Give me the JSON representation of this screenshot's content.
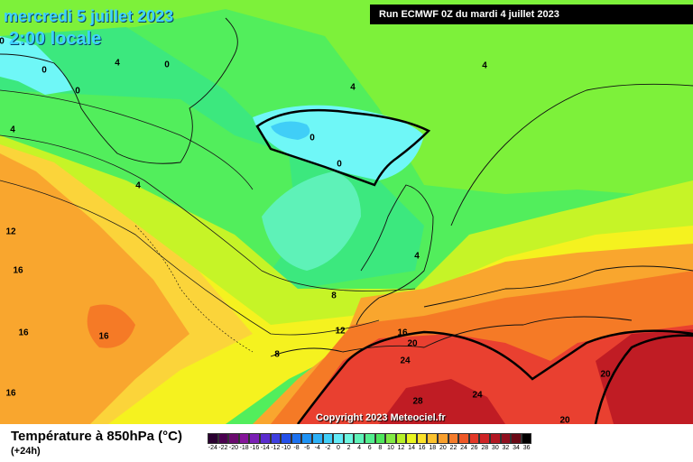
{
  "header": {
    "date": "mercredi 5 juillet 2023",
    "local_time": "2:00 locale",
    "run": "Run ECMWF 0Z du mardi 4 juillet 2023"
  },
  "copyright": "Copyright 2023 Meteociel.fr",
  "legend": {
    "title": "Température à 850hPa (°C)",
    "subtitle": "(+24h)",
    "ticks": [
      "-24",
      "-22",
      "-20",
      "-18",
      "-16",
      "-14",
      "-12",
      "-10",
      "-8",
      "-6",
      "-4",
      "-2",
      "0",
      "2",
      "4",
      "6",
      "8",
      "10",
      "12",
      "14",
      "16",
      "18",
      "20",
      "22",
      "24",
      "26",
      "28",
      "30",
      "32",
      "34",
      "36"
    ],
    "colors": [
      "#2a0030",
      "#4a004f",
      "#6a0a6e",
      "#85159a",
      "#7a1fb5",
      "#5a2ccf",
      "#3e3fe0",
      "#2450ea",
      "#1d72f0",
      "#1f93f5",
      "#2cb1f7",
      "#40cef7",
      "#62eaf7",
      "#6cf6e0",
      "#5ef2b8",
      "#53ee8e",
      "#4ee65c",
      "#82ea44",
      "#b6f028",
      "#e9f520",
      "#fbe22a",
      "#fbc22e",
      "#f9a02e",
      "#f47c2c",
      "#ee5828",
      "#e33828",
      "#cf2426",
      "#b31722",
      "#901020",
      "#6a0a16",
      "#000000"
    ]
  },
  "map": {
    "colors": {
      "cyan": "#6ff7f7",
      "green_dark": "#3ce87e",
      "green_mid": "#52ee5c",
      "green_light": "#7df13a",
      "yellow_green": "#c6f427",
      "yellow": "#f5f21f",
      "orange_light": "#fbd43a",
      "orange": "#f9a62e",
      "orange_dark": "#f57a26",
      "red": "#e94030",
      "red_dark": "#c01c24"
    },
    "isotherm_labels": [
      "0",
      "0",
      "0",
      "0",
      "0",
      "0",
      "4",
      "4",
      "4",
      "4",
      "4",
      "4",
      "8",
      "8",
      "12",
      "12",
      "16",
      "16",
      "16",
      "16",
      "16",
      "20",
      "20",
      "24",
      "24",
      "28",
      "20"
    ]
  }
}
